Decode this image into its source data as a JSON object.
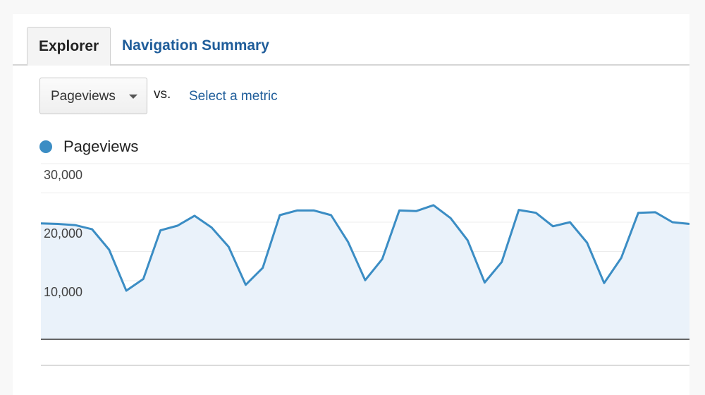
{
  "tabs": [
    {
      "label": "Explorer",
      "active": true
    },
    {
      "label": "Navigation Summary",
      "active": false
    }
  ],
  "metric_selector": {
    "selected": "Pageviews",
    "vs_label": "vs.",
    "compare_link": "Select a metric"
  },
  "legend": {
    "label": "Pageviews",
    "color": "#3b8dc4"
  },
  "colors": {
    "accent": "#3b8dc4",
    "link": "#1f5d9a",
    "area_fill": "#eaf2fa"
  },
  "chart_data": {
    "type": "area",
    "series": [
      {
        "name": "Pageviews",
        "values": [
          19800,
          19700,
          19500,
          18800,
          15300,
          8300,
          10300,
          18600,
          19400,
          21100,
          19100,
          15800,
          9300,
          12200,
          21200,
          22000,
          22000,
          21200,
          16600,
          10100,
          13700,
          22000,
          21900,
          22900,
          20700,
          16900,
          9700,
          13200,
          22100,
          21600,
          19300,
          20000,
          16500,
          9600,
          13900,
          21600,
          21700,
          20000,
          19700
        ]
      }
    ],
    "y_ticks": [
      "30,000",
      "20,000",
      "10,000"
    ],
    "y_tick_values": [
      30000,
      20000,
      10000
    ],
    "ylim": [
      0,
      30000
    ],
    "grid": true
  }
}
